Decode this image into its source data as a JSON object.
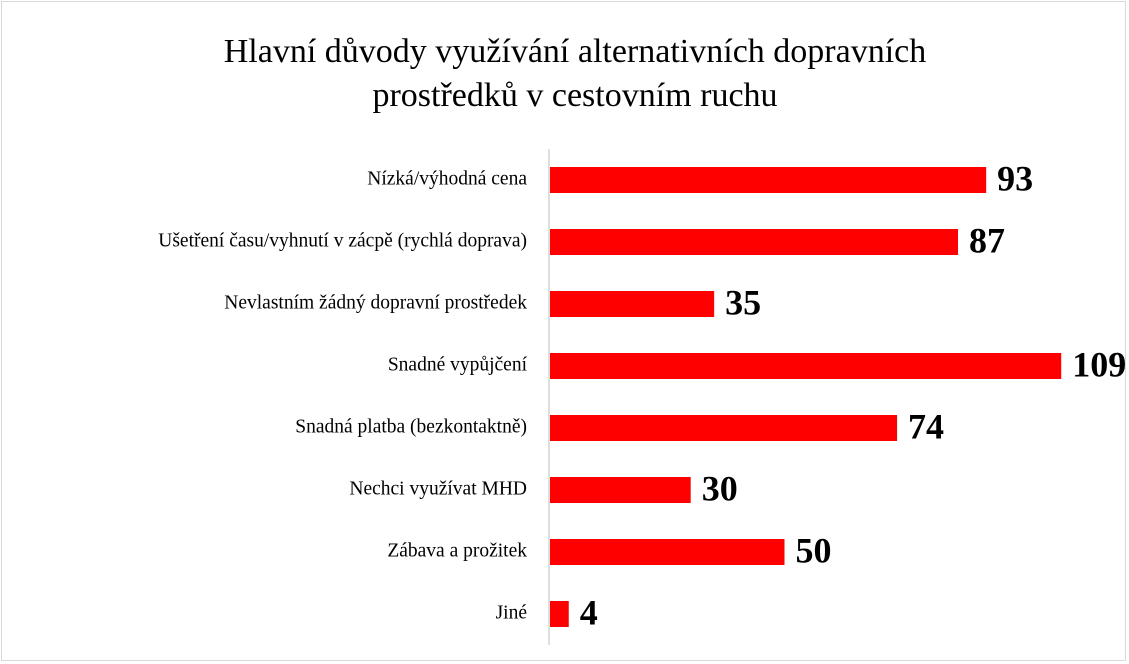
{
  "chart_data": {
    "type": "bar",
    "orientation": "horizontal",
    "title": "Hlavní důvody využívání alternativních dopravních prostředků v cestovním ruchu",
    "categories": [
      "Nízká/výhodná cena",
      "Ušetření času/vyhnutí v zácpě (rychlá doprava)",
      "Nevlastním žádný dopravní prostředek",
      "Snadné vypůjčení",
      "Snadná platba (bezkontaktně)",
      "Nechci využívat MHD",
      "Zábava a prožitek",
      "Jiné"
    ],
    "values": [
      93,
      87,
      35,
      109,
      74,
      30,
      50,
      4
    ],
    "color": "#ff0000"
  }
}
